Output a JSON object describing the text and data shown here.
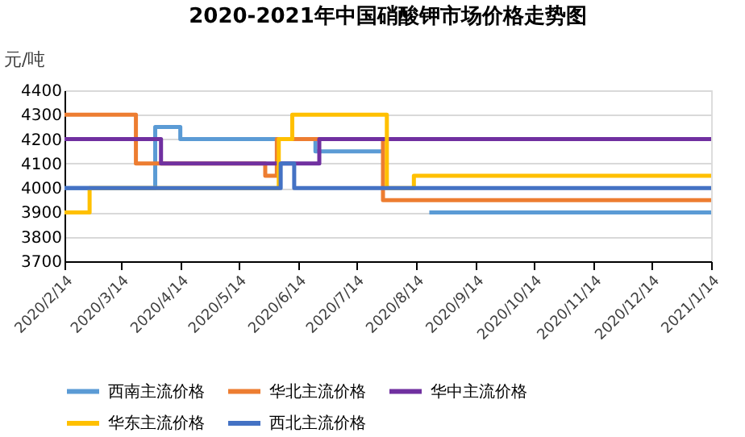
{
  "chart_data": {
    "type": "step",
    "title": "2020-2021年中国硝酸钾市场价格走势图",
    "ylabel": "元/吨",
    "xlim": [
      "2020-02-14",
      "2021-01-14"
    ],
    "xticks": [
      {
        "value": "2020-02-14",
        "label": "2020/2/14"
      },
      {
        "value": "2020-03-14",
        "label": "2020/3/14"
      },
      {
        "value": "2020-04-14",
        "label": "2020/4/14"
      },
      {
        "value": "2020-05-14",
        "label": "2020/5/14"
      },
      {
        "value": "2020-06-14",
        "label": "2020/6/14"
      },
      {
        "value": "2020-07-14",
        "label": "2020/7/14"
      },
      {
        "value": "2020-08-14",
        "label": "2020/8/14"
      },
      {
        "value": "2020-09-14",
        "label": "2020/9/14"
      },
      {
        "value": "2020-10-14",
        "label": "2020/10/14"
      },
      {
        "value": "2020-11-14",
        "label": "2020/11/14"
      },
      {
        "value": "2020-12-14",
        "label": "2020/12/14"
      },
      {
        "value": "2021-01-14",
        "label": "2021/1/14"
      }
    ],
    "ylim": [
      3700,
      4400
    ],
    "yticks": [
      3700,
      3800,
      3900,
      4000,
      4100,
      4200,
      4300,
      4400
    ],
    "grid": "y",
    "legend": "bottom",
    "line_style": "solid",
    "marker": "none",
    "series": [
      {
        "name": "西南主流价格",
        "color": "#5b9bd5",
        "x": [
          "2020-02-14",
          "2020-04-01",
          "2020-04-14",
          "2020-06-23",
          "2020-07-28",
          "2020-07-29",
          "2020-08-21",
          "2021-01-14"
        ],
        "values": [
          4000,
          4250,
          4200,
          4150,
          4150,
          null,
          3900,
          3900
        ]
      },
      {
        "name": "华北主流价格",
        "color": "#ed7d31",
        "x": [
          "2020-02-14",
          "2020-03-22",
          "2020-05-28",
          "2020-06-03",
          "2020-07-28",
          "2021-01-14"
        ],
        "values": [
          4300,
          4100,
          4050,
          4200,
          3950,
          3950
        ]
      },
      {
        "name": "华中主流价格",
        "color": "#7030a0",
        "x": [
          "2020-02-14",
          "2020-04-04",
          "2020-06-25",
          "2021-01-14"
        ],
        "values": [
          4200,
          4100,
          4200,
          4200
        ]
      },
      {
        "name": "华东主流价格",
        "color": "#ffc000",
        "x": [
          "2020-02-14",
          "2020-02-27",
          "2020-06-04",
          "2020-06-11",
          "2020-07-30",
          "2020-08-13",
          "2021-01-14"
        ],
        "values": [
          3900,
          4000,
          4200,
          4300,
          4000,
          4050,
          4050
        ]
      },
      {
        "name": "西北主流价格",
        "color": "#4472c4",
        "x": [
          "2020-02-14",
          "2020-06-05",
          "2020-06-12",
          "2021-01-14"
        ],
        "values": [
          4000,
          4100,
          4000,
          4000
        ]
      }
    ]
  }
}
